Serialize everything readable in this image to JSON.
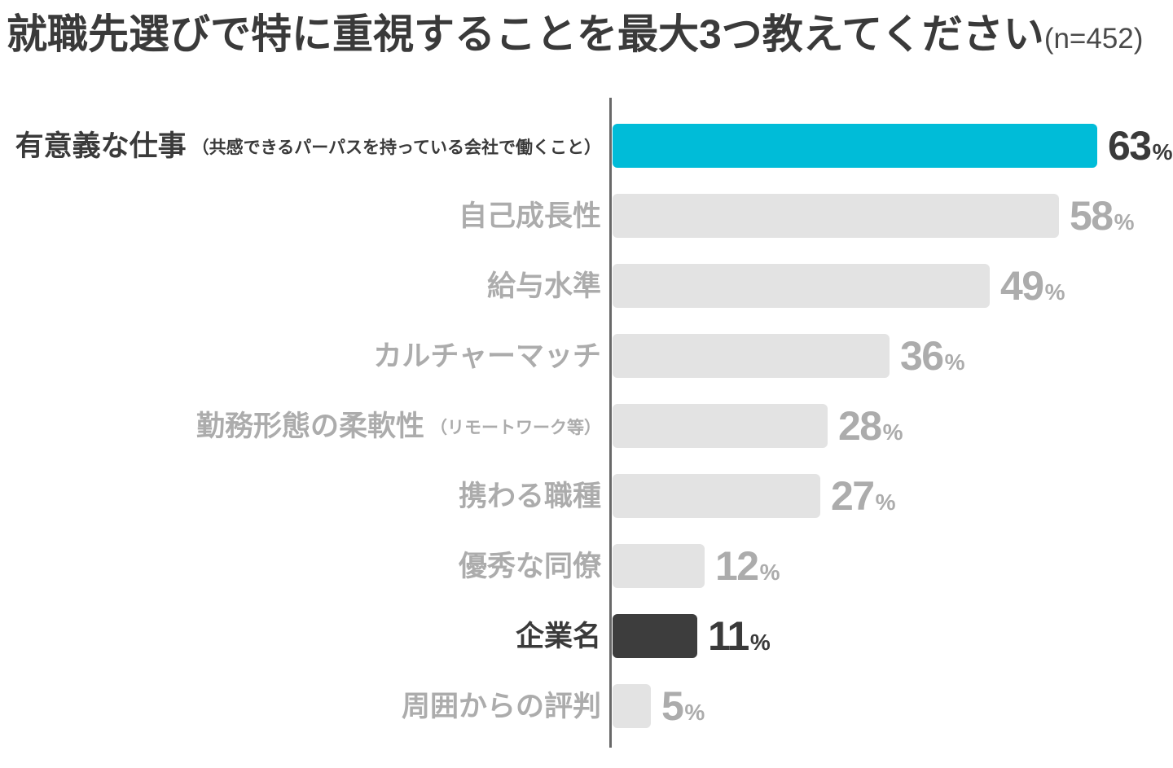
{
  "title": {
    "text": "就職先選びで特に重視することを最大3つ教えてください",
    "sample_size": "(n=452)"
  },
  "colors": {
    "accent_bar": "#00bcd8",
    "dark_bar": "#3d3d3d",
    "muted_bar": "#e3e3e3",
    "dark_text": "#3a3a3a",
    "muted_text": "#acacac",
    "axis": "#686868",
    "background": "#ffffff"
  },
  "chart_data": {
    "type": "bar",
    "orientation": "horizontal",
    "title": "就職先選びで特に重視することを最大3つ教えてください",
    "sample_size_label": "(n=452)",
    "unit": "%",
    "percent_suffix": "%",
    "axis_ticks_shown": false,
    "grid": false,
    "legend": false,
    "value_labels_shown": true,
    "categories": [
      "有意義な仕事（共感できるパーパスを持っている会社で働くこと）",
      "自己成長性",
      "給与水準",
      "カルチャーマッチ",
      "勤務形態の柔軟性（リモートワーク等）",
      "携わる職種",
      "優秀な同僚",
      "企業名",
      "周囲からの評判"
    ],
    "values": [
      63,
      58,
      49,
      36,
      28,
      27,
      12,
      11,
      5
    ],
    "rows": [
      {
        "label": "有意義な仕事",
        "sublabel": "（共感できるパーパスを持っている会社で働くこと）",
        "value": 63,
        "style": "accent"
      },
      {
        "label": "自己成長性",
        "sublabel": "",
        "value": 58,
        "style": "muted"
      },
      {
        "label": "給与水準",
        "sublabel": "",
        "value": 49,
        "style": "muted"
      },
      {
        "label": "カルチャーマッチ",
        "sublabel": "",
        "value": 36,
        "style": "muted"
      },
      {
        "label": "勤務形態の柔軟性",
        "sublabel": "（リモートワーク等）",
        "value": 28,
        "style": "muted"
      },
      {
        "label": "携わる職種",
        "sublabel": "",
        "value": 27,
        "style": "muted"
      },
      {
        "label": "優秀な同僚",
        "sublabel": "",
        "value": 12,
        "style": "muted"
      },
      {
        "label": "企業名",
        "sublabel": "",
        "value": 11,
        "style": "dark"
      },
      {
        "label": "周囲からの評判",
        "sublabel": "",
        "value": 5,
        "style": "muted"
      }
    ]
  }
}
